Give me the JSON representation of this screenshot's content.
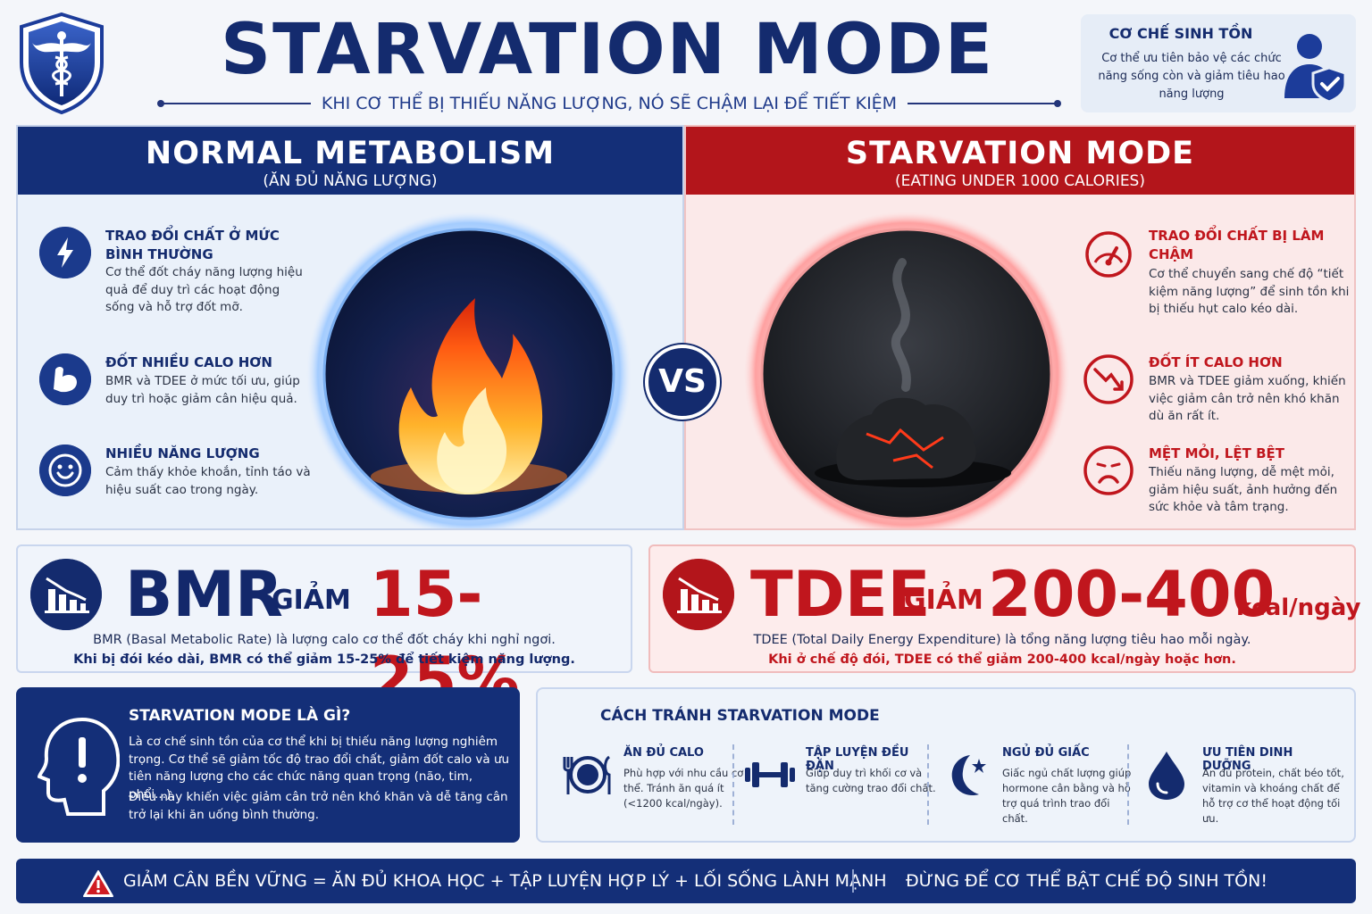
{
  "header": {
    "title": "STARVATION MODE",
    "subtitle": "KHI CƠ THỂ BỊ THIẾU NĂNG LƯỢNG, NÓ SẼ CHẬM LẠI ĐỂ TIẾT KIỆM",
    "corner": {
      "title": "CƠ CHẾ SINH TỒN",
      "desc": "Cơ thể ưu tiên bảo vệ các chức năng sống còn và giảm tiêu hao năng lượng"
    }
  },
  "left": {
    "title": "NORMAL METABOLISM",
    "subtitle": "(ĂN ĐỦ NĂNG LƯỢNG)",
    "features": [
      {
        "title": "TRAO ĐỔI CHẤT Ở MỨC BÌNH THƯỜNG",
        "desc": "Cơ thể đốt cháy năng lượng hiệu quả để duy trì các hoạt động sống và hỗ trợ đốt mỡ.",
        "icon": "lightning-icon"
      },
      {
        "title": "ĐỐT NHIỀU CALO HƠN",
        "desc": "BMR và TDEE ở mức tối ưu, giúp duy trì hoặc giảm cân hiệu quả.",
        "icon": "muscle-icon"
      },
      {
        "title": "NHIỀU NĂNG LƯỢNG",
        "desc": "Cảm thấy khỏe khoắn, tỉnh táo và hiệu suất cao trong ngày.",
        "icon": "smile-icon"
      }
    ]
  },
  "right": {
    "title": "STARVATION MODE",
    "subtitle": "(EATING UNDER 1000 CALORIES)",
    "features": [
      {
        "title": "TRAO ĐỔI CHẤT BỊ LÀM CHẬM",
        "desc": "Cơ thể chuyển sang chế độ “tiết kiệm năng lượng” để sinh tồn khi bị thiếu hụt calo kéo dài.",
        "icon": "gauge-icon"
      },
      {
        "title": "ĐỐT ÍT CALO HƠN",
        "desc": "BMR và TDEE giảm xuống, khiến việc giảm cân trở nên khó khăn dù ăn rất ít.",
        "icon": "down-arrow-icon"
      },
      {
        "title": "MỆT MỎI, LỆT BỆT",
        "desc": "Thiếu năng lượng, dễ mệt mỏi, giảm hiệu suất, ảnh hưởng đến sức khỏe và tâm trạng.",
        "icon": "sad-icon"
      }
    ]
  },
  "vs": "VS",
  "bmr": {
    "label": "BMR",
    "verb": "GIẢM",
    "value": "15-25%",
    "desc1": "BMR (Basal Metabolic Rate) là lượng calo cơ thể đốt cháy khi nghỉ ngơi.",
    "desc2": "Khi bị đói kéo dài, BMR có thể giảm 15-25% để tiết kiệm năng lượng."
  },
  "tdee": {
    "label": "TDEE",
    "verb": "GIẢM",
    "value": "200-400",
    "unit": "kcal/ngày",
    "desc1": "TDEE (Total Daily Energy Expenditure) là tổng năng lượng tiêu hao mỗi ngày.",
    "desc2": "Khi ở chế độ đói, TDEE có thể giảm 200-400 kcal/ngày hoặc hơn."
  },
  "what": {
    "title": "STARVATION MODE LÀ GÌ?",
    "desc1": "Là cơ chế sinh tồn của cơ thể khi bị thiếu năng lượng nghiêm trọng. Cơ thể sẽ giảm tốc độ trao đổi chất, giảm đốt calo và ưu tiên năng lượng cho các chức năng quan trọng (não, tim, phổi...).",
    "desc2": "Điều này khiến việc giảm cân trở nên khó khăn và dễ tăng cân trở lại khi ăn uống bình thường."
  },
  "avoid": {
    "title": "CÁCH TRÁNH STARVATION MODE",
    "tips": [
      {
        "title": "ĂN ĐỦ CALO",
        "desc": "Phù hợp với nhu cầu cơ thể. Tránh ăn quá ít (<1200 kcal/ngày).",
        "icon": "plate-icon"
      },
      {
        "title": "TẬP LUYỆN ĐỀU ĐẶN",
        "desc": "Giúp duy trì khối cơ và tăng cường trao đổi chất.",
        "icon": "dumbbell-icon"
      },
      {
        "title": "NGỦ ĐỦ GIẤC",
        "desc": "Giấc ngủ chất lượng giúp hormone cân bằng và hỗ trợ quá trình trao đổi chất.",
        "icon": "moon-icon"
      },
      {
        "title": "ƯU TIÊN DINH DƯỠNG",
        "desc": "Ăn đủ protein, chất béo tốt, vitamin và khoáng chất để hỗ trợ cơ thể hoạt động tối ưu.",
        "icon": "drop-icon"
      }
    ]
  },
  "footer": {
    "left": "GIẢM CÂN BỀN VỮNG = ĂN ĐỦ KHOA HỌC + TẬP LUYỆN HỢP LÝ + LỐI SỐNG LÀNH MẠNH",
    "right": "ĐỪNG ĐỂ CƠ THỂ BẬT CHẾ ĐỘ SINH TỒN!"
  }
}
